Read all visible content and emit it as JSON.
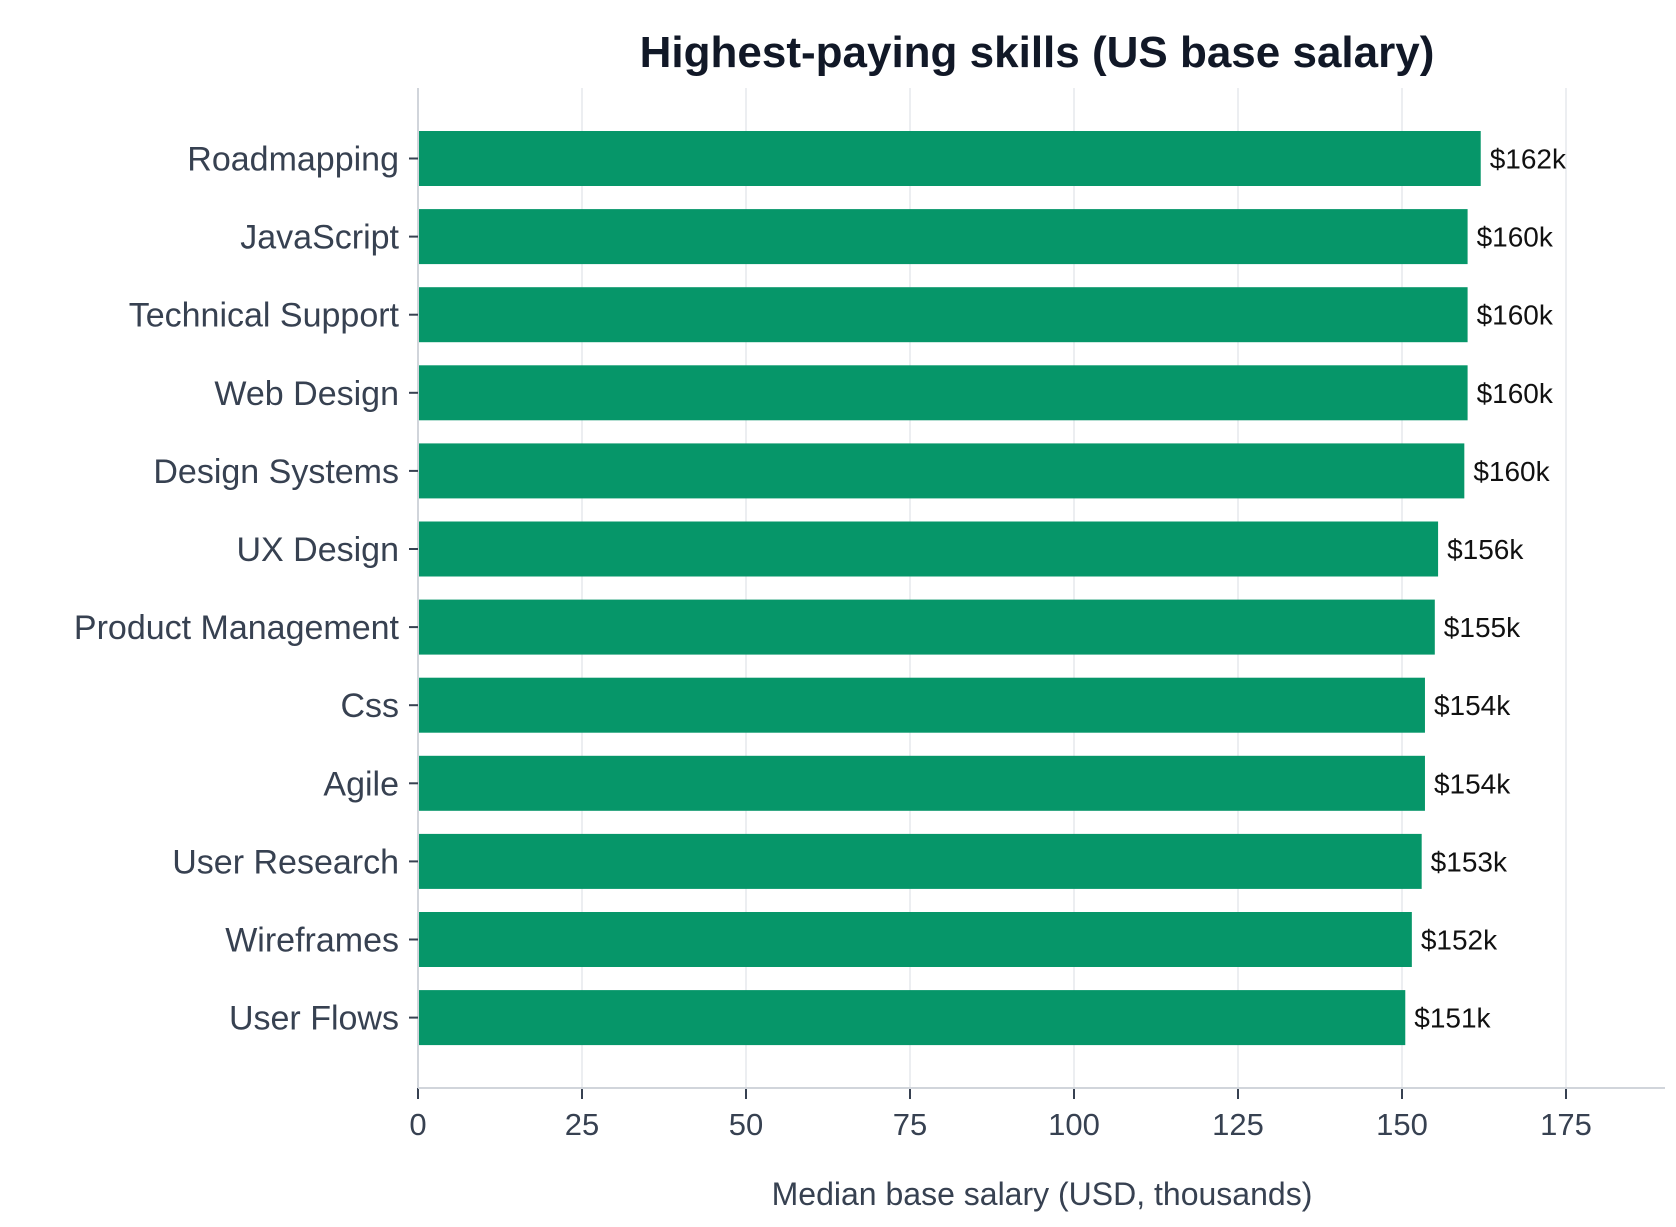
{
  "chart_data": {
    "type": "bar",
    "orientation": "horizontal",
    "title": "Highest-paying skills (US base salary)",
    "xlabel": "Median base salary (USD, thousands)",
    "ylabel": "",
    "xlim": [
      0,
      190
    ],
    "xticks": [
      0,
      25,
      50,
      75,
      100,
      125,
      150,
      175
    ],
    "grid": "vertical",
    "legend": "none",
    "bar_color": "#069669",
    "categories": [
      "Roadmapping",
      "JavaScript",
      "Technical Support",
      "Web Design",
      "Design Systems",
      "UX Design",
      "Product Management",
      "Css",
      "Agile",
      "User Research",
      "Wireframes",
      "User Flows"
    ],
    "values": [
      162,
      160,
      160,
      160,
      159.5,
      155.5,
      155,
      153.5,
      153.5,
      153,
      151.5,
      150.5
    ],
    "value_labels": [
      "$162k",
      "$160k",
      "$160k",
      "$160k",
      "$160k",
      "$156k",
      "$155k",
      "$154k",
      "$154k",
      "$153k",
      "$152k",
      "$151k"
    ]
  },
  "colors": {
    "bar": "#069669",
    "grid": "#eceef1",
    "axis": "#d1d5db",
    "title": "#111827",
    "label": "#374151"
  }
}
